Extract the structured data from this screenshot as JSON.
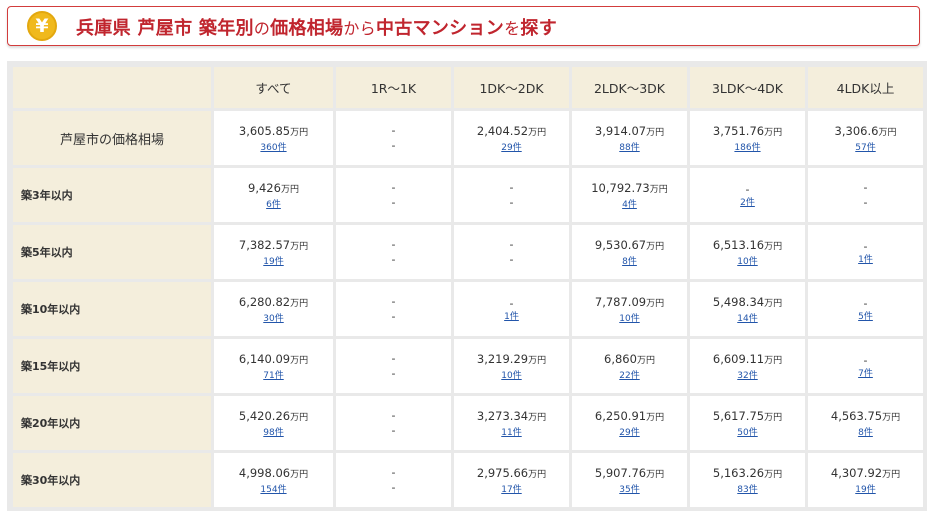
{
  "header": {
    "yen_symbol": "¥",
    "title_part1": "兵庫県 芦屋市 築年別",
    "title_part2": "の",
    "title_part3": "価格相場",
    "title_part4": "から",
    "title_part5": "中古マンション",
    "title_part6": "を",
    "title_part7": "探す"
  },
  "unit": "万円",
  "columns": [
    "すべて",
    "1R～1K",
    "1DK～2DK",
    "2LDK～3DK",
    "3LDK～4DK",
    "4LDK以上"
  ],
  "rows": [
    {
      "label": "芦屋市の価格相場",
      "cells": [
        {
          "price": "3,605.85",
          "count": "360件"
        },
        {
          "price": null,
          "count": null
        },
        {
          "price": "2,404.52",
          "count": "29件"
        },
        {
          "price": "3,914.07",
          "count": "88件"
        },
        {
          "price": "3,751.76",
          "count": "186件"
        },
        {
          "price": "3,306.6",
          "count": "57件"
        }
      ]
    },
    {
      "label": "築3年以内",
      "cells": [
        {
          "price": "9,426",
          "count": "6件"
        },
        {
          "price": null,
          "count": null
        },
        {
          "price": null,
          "count": null
        },
        {
          "price": "10,792.73",
          "count": "4件"
        },
        {
          "price": null,
          "count": "2件"
        },
        {
          "price": null,
          "count": null
        }
      ]
    },
    {
      "label": "築5年以内",
      "cells": [
        {
          "price": "7,382.57",
          "count": "19件"
        },
        {
          "price": null,
          "count": null
        },
        {
          "price": null,
          "count": null
        },
        {
          "price": "9,530.67",
          "count": "8件"
        },
        {
          "price": "6,513.16",
          "count": "10件"
        },
        {
          "price": null,
          "count": "1件"
        }
      ]
    },
    {
      "label": "築10年以内",
      "cells": [
        {
          "price": "6,280.82",
          "count": "30件"
        },
        {
          "price": null,
          "count": null
        },
        {
          "price": null,
          "count": "1件"
        },
        {
          "price": "7,787.09",
          "count": "10件"
        },
        {
          "price": "5,498.34",
          "count": "14件"
        },
        {
          "price": null,
          "count": "5件"
        }
      ]
    },
    {
      "label": "築15年以内",
      "cells": [
        {
          "price": "6,140.09",
          "count": "71件"
        },
        {
          "price": null,
          "count": null
        },
        {
          "price": "3,219.29",
          "count": "10件"
        },
        {
          "price": "6,860",
          "count": "22件"
        },
        {
          "price": "6,609.11",
          "count": "32件"
        },
        {
          "price": null,
          "count": "7件"
        }
      ]
    },
    {
      "label": "築20年以内",
      "cells": [
        {
          "price": "5,420.26",
          "count": "98件"
        },
        {
          "price": null,
          "count": null
        },
        {
          "price": "3,273.34",
          "count": "11件"
        },
        {
          "price": "6,250.91",
          "count": "29件"
        },
        {
          "price": "5,617.75",
          "count": "50件"
        },
        {
          "price": "4,563.75",
          "count": "8件"
        }
      ]
    },
    {
      "label": "築30年以内",
      "cells": [
        {
          "price": "4,998.06",
          "count": "154件"
        },
        {
          "price": null,
          "count": null
        },
        {
          "price": "2,975.66",
          "count": "17件"
        },
        {
          "price": "5,907.76",
          "count": "35件"
        },
        {
          "price": "5,163.26",
          "count": "83件"
        },
        {
          "price": "4,307.92",
          "count": "19件"
        }
      ]
    }
  ],
  "empty_mark": "-"
}
